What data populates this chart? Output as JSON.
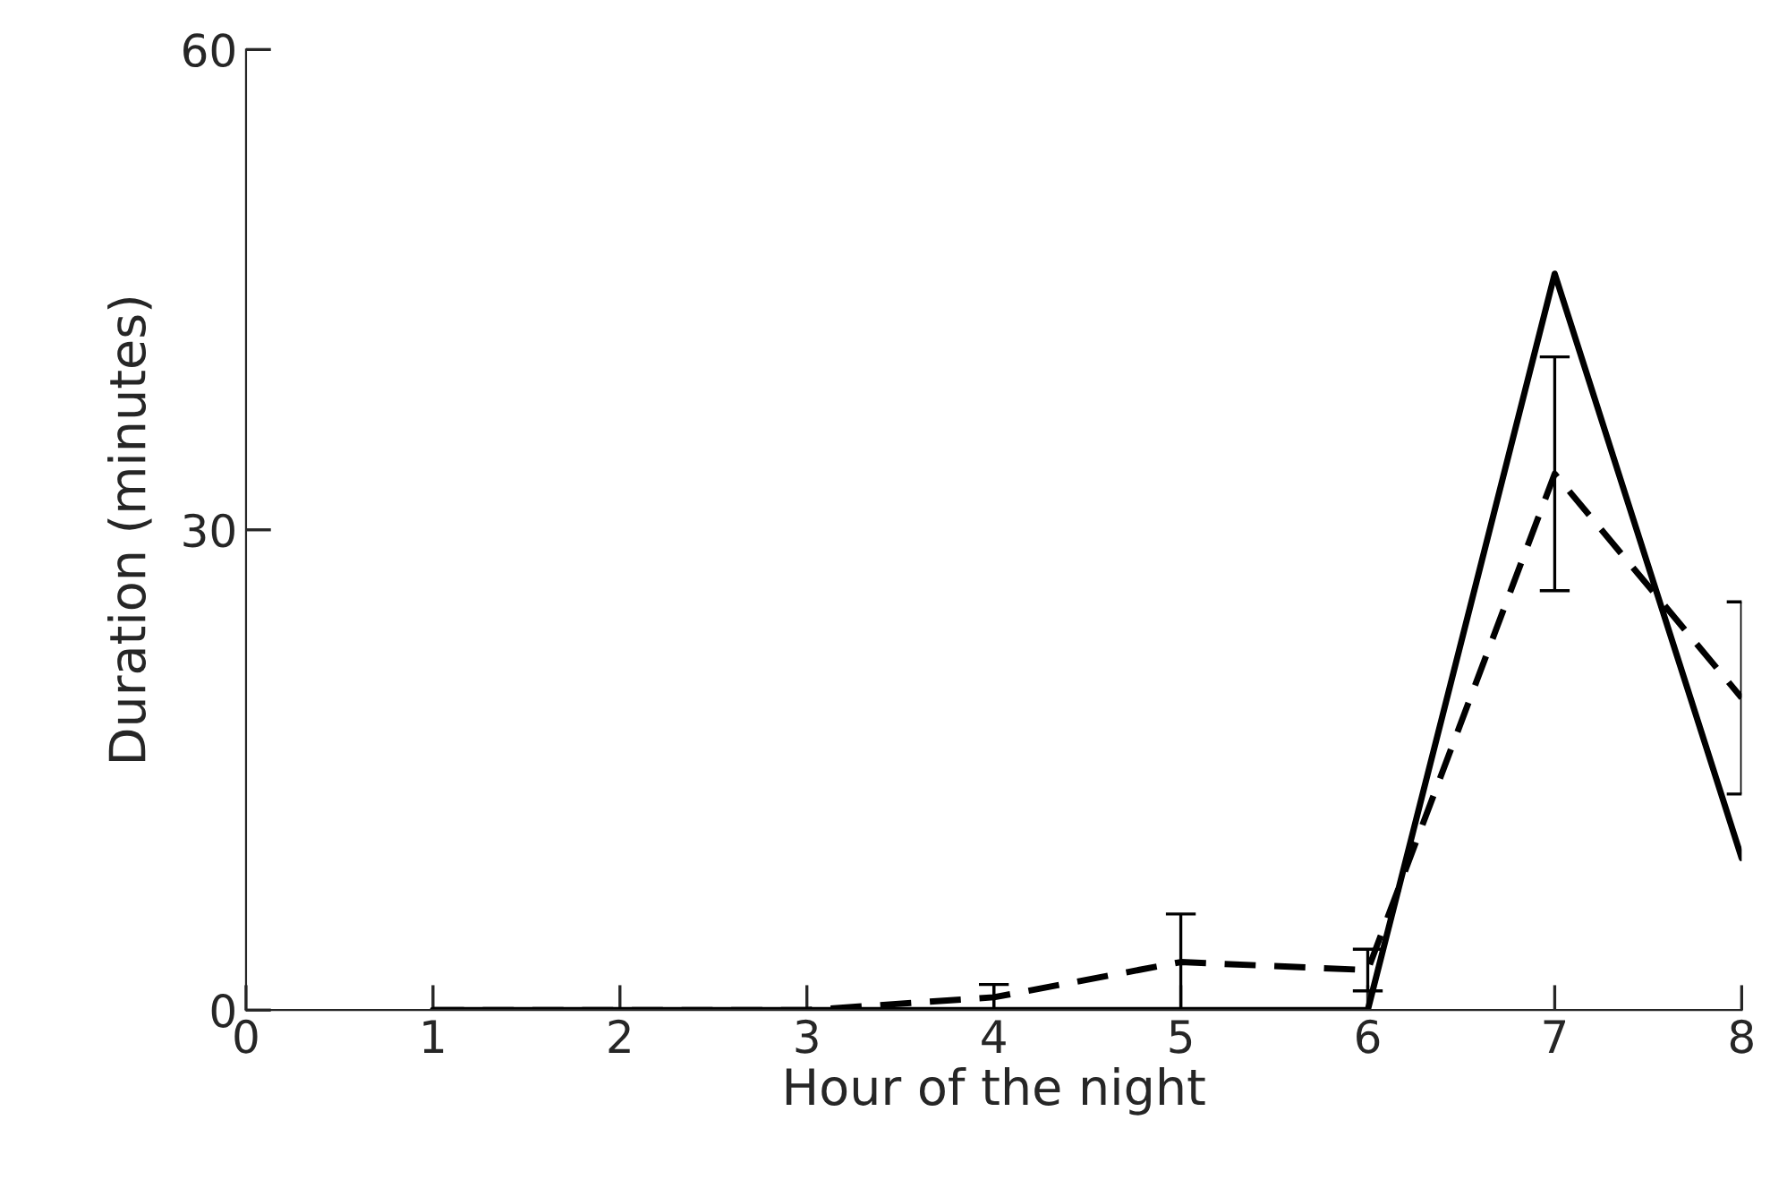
{
  "chart_data": {
    "type": "line",
    "xlabel": "Hour of the night",
    "ylabel": "Duration (minutes)",
    "x": [
      1,
      2,
      3,
      4,
      5,
      6,
      7,
      8
    ],
    "series": [
      {
        "color": "#000000",
        "line_style": "solid",
        "values": [
          0,
          0,
          0,
          0,
          0,
          0,
          46,
          9.5
        ]
      },
      {
        "color": "#000000",
        "line_style": "dashed",
        "values": [
          0,
          0,
          0,
          0.8,
          3,
          2.5,
          33.5,
          19.5
        ],
        "errors": [
          null,
          null,
          null,
          [
            0,
            1.6
          ],
          3,
          1.3,
          7.3,
          6
        ]
      }
    ],
    "xlim": [
      0,
      8
    ],
    "ylim": [
      0,
      60
    ],
    "xticks": [
      0,
      1,
      2,
      3,
      4,
      5,
      6,
      7,
      8
    ],
    "yticks": [
      0,
      30,
      60
    ],
    "grid": false,
    "legend": false,
    "marker": "none"
  }
}
